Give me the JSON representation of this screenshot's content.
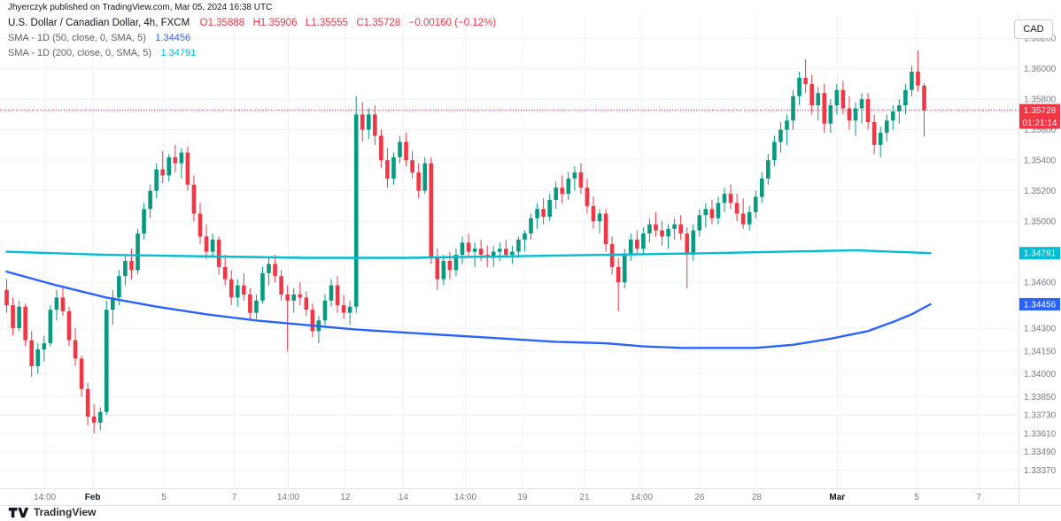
{
  "header": {
    "attribution": "Jhyerczyk published on TradingView.com, Mar 05, 2024 16:38 UTC"
  },
  "legend": {
    "symbol": "U.S. Dollar / Canadian Dollar, 4h, FXCM",
    "open": "O1.35888",
    "high": "H1.35906",
    "low": "L1.35555",
    "close": "C1.35728",
    "change": "−0.00160 (−0.12%)",
    "sma50_label": "SMA - 1D (50, close, 0, SMA, 5)",
    "sma50_value": "1.34456",
    "sma200_label": "SMA - 1D (200, close, 0, SMA, 5)",
    "sma200_value": "1.34791"
  },
  "toolbar": {
    "currency": "CAD"
  },
  "footer": {
    "brand": "TradingView"
  },
  "badges": {
    "price": "1.35728",
    "countdown": "01:21:14",
    "sma50": "1.34456",
    "sma200": "1.34791"
  },
  "colors": {
    "up": "#089981",
    "down": "#f23645",
    "sma50": "#2962ff",
    "sma200": "#00bcd4",
    "grid": "#eef1f6",
    "axis_text": "#787b86",
    "text": "#131722",
    "border": "#e0e3eb"
  },
  "chart_data": {
    "type": "candlestick",
    "title": "U.S. Dollar / Canadian Dollar, 4h, FXCM",
    "price_line": 1.35728,
    "y_axis": {
      "top_price": 1.3645,
      "bottom_price": 1.3325,
      "labels": [
        "1.36200",
        "1.36000",
        "1.35800",
        "1.35600",
        "1.35400",
        "1.35200",
        "1.35000",
        "1.34600",
        "1.34300",
        "1.34150",
        "1.34000",
        "1.33850",
        "1.33730",
        "1.33610",
        "1.33490",
        "1.33370"
      ]
    },
    "x_axis": {
      "left_pad": 4,
      "candle_span": 0.907,
      "labels": [
        {
          "label": "14:00",
          "pos": 0.044,
          "bold": false
        },
        {
          "label": "Feb",
          "pos": 0.091,
          "bold": true
        },
        {
          "label": "5",
          "pos": 0.161,
          "bold": false
        },
        {
          "label": "7",
          "pos": 0.23,
          "bold": false
        },
        {
          "label": "14:00",
          "pos": 0.283,
          "bold": false
        },
        {
          "label": "12",
          "pos": 0.339,
          "bold": false
        },
        {
          "label": "14",
          "pos": 0.396,
          "bold": false
        },
        {
          "label": "14:00",
          "pos": 0.457,
          "bold": false
        },
        {
          "label": "19",
          "pos": 0.513,
          "bold": false
        },
        {
          "label": "21",
          "pos": 0.574,
          "bold": false
        },
        {
          "label": "14:00",
          "pos": 0.63,
          "bold": false
        },
        {
          "label": "26",
          "pos": 0.687,
          "bold": false
        },
        {
          "label": "28",
          "pos": 0.743,
          "bold": false
        },
        {
          "label": "Mar",
          "pos": 0.822,
          "bold": true
        },
        {
          "label": "5",
          "pos": 0.9,
          "bold": false
        },
        {
          "label": "7",
          "pos": 0.961,
          "bold": false
        }
      ]
    },
    "candles": [
      [
        1.3455,
        1.3462,
        1.344,
        1.3445
      ],
      [
        1.3445,
        1.345,
        1.3425,
        1.343
      ],
      [
        1.343,
        1.3448,
        1.3428,
        1.3444
      ],
      [
        1.3444,
        1.3446,
        1.3418,
        1.3422
      ],
      [
        1.3422,
        1.3428,
        1.3398,
        1.3405
      ],
      [
        1.3405,
        1.342,
        1.34,
        1.3416
      ],
      [
        1.3416,
        1.3425,
        1.3408,
        1.342
      ],
      [
        1.342,
        1.3445,
        1.3418,
        1.3442
      ],
      [
        1.3442,
        1.3455,
        1.3435,
        1.345
      ],
      [
        1.345,
        1.3458,
        1.3438,
        1.3441
      ],
      [
        1.3441,
        1.3444,
        1.3418,
        1.3422
      ],
      [
        1.3422,
        1.343,
        1.3405,
        1.341
      ],
      [
        1.341,
        1.3412,
        1.3385,
        1.339
      ],
      [
        1.339,
        1.3394,
        1.3366,
        1.3372
      ],
      [
        1.3372,
        1.338,
        1.3361,
        1.3368
      ],
      [
        1.3368,
        1.3378,
        1.3363,
        1.3375
      ],
      [
        1.3375,
        1.3448,
        1.3373,
        1.3442
      ],
      [
        1.3442,
        1.3455,
        1.3432,
        1.345
      ],
      [
        1.345,
        1.3468,
        1.3445,
        1.3464
      ],
      [
        1.3464,
        1.3478,
        1.3458,
        1.3474
      ],
      [
        1.3474,
        1.3482,
        1.3462,
        1.3468
      ],
      [
        1.3468,
        1.3495,
        1.3465,
        1.3492
      ],
      [
        1.3492,
        1.3512,
        1.3488,
        1.3508
      ],
      [
        1.3508,
        1.3524,
        1.3502,
        1.352
      ],
      [
        1.352,
        1.3538,
        1.3515,
        1.3534
      ],
      [
        1.3534,
        1.3546,
        1.3525,
        1.353
      ],
      [
        1.353,
        1.3544,
        1.3526,
        1.3542
      ],
      [
        1.3542,
        1.355,
        1.3532,
        1.3538
      ],
      [
        1.3538,
        1.3548,
        1.3528,
        1.3545
      ],
      [
        1.3545,
        1.3549,
        1.352,
        1.3524
      ],
      [
        1.3524,
        1.353,
        1.35,
        1.3505
      ],
      [
        1.3505,
        1.3512,
        1.3485,
        1.349
      ],
      [
        1.349,
        1.3498,
        1.3475,
        1.348
      ],
      [
        1.348,
        1.3492,
        1.3476,
        1.3488
      ],
      [
        1.3488,
        1.349,
        1.3465,
        1.347
      ],
      [
        1.347,
        1.3478,
        1.3458,
        1.3462
      ],
      [
        1.3462,
        1.3468,
        1.3445,
        1.345
      ],
      [
        1.345,
        1.3462,
        1.3444,
        1.3458
      ],
      [
        1.3458,
        1.3466,
        1.3448,
        1.3452
      ],
      [
        1.3452,
        1.3456,
        1.3435,
        1.344
      ],
      [
        1.344,
        1.3452,
        1.3436,
        1.3448
      ],
      [
        1.3448,
        1.347,
        1.3446,
        1.3466
      ],
      [
        1.3466,
        1.3476,
        1.3458,
        1.3472
      ],
      [
        1.3472,
        1.3478,
        1.346,
        1.3464
      ],
      [
        1.3464,
        1.3468,
        1.3448,
        1.3452
      ],
      [
        1.3452,
        1.3458,
        1.3415,
        1.3448
      ],
      [
        1.3448,
        1.3456,
        1.344,
        1.3452
      ],
      [
        1.3452,
        1.346,
        1.3445,
        1.345
      ],
      [
        1.345,
        1.3454,
        1.3438,
        1.3442
      ],
      [
        1.3442,
        1.3446,
        1.3424,
        1.3428
      ],
      [
        1.3428,
        1.3438,
        1.342,
        1.3435
      ],
      [
        1.3435,
        1.3452,
        1.3432,
        1.3448
      ],
      [
        1.3448,
        1.3462,
        1.3444,
        1.3458
      ],
      [
        1.3458,
        1.3464,
        1.344,
        1.3445
      ],
      [
        1.3445,
        1.3452,
        1.3436,
        1.344
      ],
      [
        1.344,
        1.3448,
        1.3432,
        1.3444
      ],
      [
        1.3444,
        1.3582,
        1.344,
        1.357
      ],
      [
        1.357,
        1.3578,
        1.3552,
        1.356
      ],
      [
        1.356,
        1.3574,
        1.3554,
        1.357
      ],
      [
        1.357,
        1.3576,
        1.355,
        1.3556
      ],
      [
        1.3556,
        1.356,
        1.3535,
        1.354
      ],
      [
        1.354,
        1.3548,
        1.3522,
        1.3528
      ],
      [
        1.3528,
        1.3545,
        1.3524,
        1.3542
      ],
      [
        1.3542,
        1.3556,
        1.3538,
        1.3552
      ],
      [
        1.3552,
        1.3558,
        1.3536,
        1.354
      ],
      [
        1.354,
        1.3546,
        1.3528,
        1.3532
      ],
      [
        1.3532,
        1.3538,
        1.3515,
        1.352
      ],
      [
        1.352,
        1.3542,
        1.3518,
        1.3538
      ],
      [
        1.3538,
        1.3542,
        1.3472,
        1.3476
      ],
      [
        1.3476,
        1.3482,
        1.3455,
        1.3462
      ],
      [
        1.3462,
        1.3478,
        1.3458,
        1.3474
      ],
      [
        1.3474,
        1.348,
        1.3462,
        1.3468
      ],
      [
        1.3468,
        1.3482,
        1.3464,
        1.3478
      ],
      [
        1.3478,
        1.349,
        1.3472,
        1.3486
      ],
      [
        1.3486,
        1.3492,
        1.3476,
        1.348
      ],
      [
        1.348,
        1.3486,
        1.347,
        1.3482
      ],
      [
        1.3482,
        1.3488,
        1.3474,
        1.3478
      ],
      [
        1.3478,
        1.3484,
        1.347,
        1.3476
      ],
      [
        1.3476,
        1.3484,
        1.347,
        1.348
      ],
      [
        1.348,
        1.3486,
        1.3474,
        1.3482
      ],
      [
        1.3482,
        1.3488,
        1.3476,
        1.3478
      ],
      [
        1.3478,
        1.3484,
        1.3472,
        1.348
      ],
      [
        1.348,
        1.349,
        1.3476,
        1.3488
      ],
      [
        1.3488,
        1.3494,
        1.348,
        1.3492
      ],
      [
        1.3492,
        1.3505,
        1.3488,
        1.3502
      ],
      [
        1.3502,
        1.3512,
        1.3495,
        1.3508
      ],
      [
        1.3508,
        1.3515,
        1.3498,
        1.3503
      ],
      [
        1.3503,
        1.3518,
        1.35,
        1.3514
      ],
      [
        1.3514,
        1.3526,
        1.3508,
        1.3522
      ],
      [
        1.3522,
        1.353,
        1.3512,
        1.3518
      ],
      [
        1.3518,
        1.3532,
        1.3514,
        1.3528
      ],
      [
        1.3528,
        1.3536,
        1.352,
        1.3532
      ],
      [
        1.3532,
        1.3538,
        1.3518,
        1.3522
      ],
      [
        1.3522,
        1.3528,
        1.3505,
        1.351
      ],
      [
        1.351,
        1.3516,
        1.3495,
        1.35
      ],
      [
        1.35,
        1.3508,
        1.3492,
        1.3505
      ],
      [
        1.3505,
        1.3508,
        1.348,
        1.3485
      ],
      [
        1.3485,
        1.349,
        1.3465,
        1.347
      ],
      [
        1.347,
        1.3476,
        1.3441,
        1.346
      ],
      [
        1.346,
        1.3482,
        1.3456,
        1.3478
      ],
      [
        1.3478,
        1.3492,
        1.3474,
        1.3488
      ],
      [
        1.3488,
        1.3494,
        1.3478,
        1.3482
      ],
      [
        1.3482,
        1.3496,
        1.3478,
        1.3492
      ],
      [
        1.3492,
        1.3502,
        1.3486,
        1.3498
      ],
      [
        1.3498,
        1.3506,
        1.349,
        1.3494
      ],
      [
        1.3494,
        1.35,
        1.3484,
        1.349
      ],
      [
        1.349,
        1.3498,
        1.3482,
        1.3495
      ],
      [
        1.3495,
        1.3502,
        1.3488,
        1.3498
      ],
      [
        1.3498,
        1.3504,
        1.3488,
        1.3492
      ],
      [
        1.3492,
        1.3496,
        1.3456,
        1.3478
      ],
      [
        1.3478,
        1.3498,
        1.3474,
        1.3494
      ],
      [
        1.3494,
        1.3508,
        1.349,
        1.3504
      ],
      [
        1.3504,
        1.3512,
        1.3496,
        1.3508
      ],
      [
        1.3508,
        1.3514,
        1.3498,
        1.3502
      ],
      [
        1.3502,
        1.3516,
        1.3498,
        1.3512
      ],
      [
        1.3512,
        1.3522,
        1.3506,
        1.3518
      ],
      [
        1.3518,
        1.3524,
        1.3508,
        1.3512
      ],
      [
        1.3512,
        1.3518,
        1.35,
        1.3505
      ],
      [
        1.3505,
        1.3515,
        1.3495,
        1.3498
      ],
      [
        1.3498,
        1.351,
        1.3494,
        1.3506
      ],
      [
        1.3506,
        1.352,
        1.3502,
        1.3516
      ],
      [
        1.3516,
        1.3532,
        1.3512,
        1.3528
      ],
      [
        1.3528,
        1.3544,
        1.3524,
        1.354
      ],
      [
        1.354,
        1.3556,
        1.3536,
        1.3552
      ],
      [
        1.3552,
        1.3565,
        1.3545,
        1.356
      ],
      [
        1.356,
        1.357,
        1.355,
        1.3566
      ],
      [
        1.3566,
        1.3586,
        1.356,
        1.3582
      ],
      [
        1.3582,
        1.3598,
        1.3576,
        1.3594
      ],
      [
        1.3594,
        1.3606,
        1.3584,
        1.359
      ],
      [
        1.359,
        1.3596,
        1.357,
        1.3576
      ],
      [
        1.3576,
        1.3588,
        1.3566,
        1.3584
      ],
      [
        1.3584,
        1.359,
        1.3558,
        1.3564
      ],
      [
        1.3564,
        1.358,
        1.3558,
        1.3576
      ],
      [
        1.3576,
        1.359,
        1.357,
        1.3586
      ],
      [
        1.3586,
        1.3592,
        1.357,
        1.3574
      ],
      [
        1.3574,
        1.3582,
        1.356,
        1.3566
      ],
      [
        1.3566,
        1.3578,
        1.3556,
        1.3574
      ],
      [
        1.3574,
        1.3584,
        1.3564,
        1.358
      ],
      [
        1.358,
        1.3584,
        1.356,
        1.3565
      ],
      [
        1.3565,
        1.357,
        1.3544,
        1.355
      ],
      [
        1.355,
        1.3562,
        1.3542,
        1.3558
      ],
      [
        1.3558,
        1.357,
        1.3552,
        1.3566
      ],
      [
        1.3566,
        1.3576,
        1.356,
        1.3572
      ],
      [
        1.3572,
        1.358,
        1.3564,
        1.3576
      ],
      [
        1.3576,
        1.359,
        1.357,
        1.3586
      ],
      [
        1.3586,
        1.3602,
        1.3582,
        1.3598
      ],
      [
        1.3598,
        1.3612,
        1.3585,
        1.3589
      ],
      [
        1.35888,
        1.35906,
        1.35555,
        1.35728
      ]
    ],
    "sma50": {
      "points": [
        [
          0,
          1.3467
        ],
        [
          8,
          1.3458
        ],
        [
          16,
          1.345
        ],
        [
          24,
          1.3444
        ],
        [
          32,
          1.3439
        ],
        [
          40,
          1.3435
        ],
        [
          48,
          1.3432
        ],
        [
          56,
          1.3429
        ],
        [
          64,
          1.3427
        ],
        [
          72,
          1.3425
        ],
        [
          80,
          1.3423
        ],
        [
          88,
          1.3421
        ],
        [
          96,
          1.342
        ],
        [
          102,
          1.3418
        ],
        [
          108,
          1.3417
        ],
        [
          114,
          1.3417
        ],
        [
          120,
          1.3417
        ],
        [
          126,
          1.3419
        ],
        [
          132,
          1.3423
        ],
        [
          138,
          1.3428
        ],
        [
          142,
          1.3434
        ],
        [
          145,
          1.3439
        ],
        [
          148,
          1.34456
        ]
      ]
    },
    "sma200": {
      "points": [
        [
          0,
          1.348
        ],
        [
          16,
          1.3478
        ],
        [
          32,
          1.3477
        ],
        [
          48,
          1.3476
        ],
        [
          64,
          1.3476
        ],
        [
          80,
          1.3477
        ],
        [
          96,
          1.3478
        ],
        [
          112,
          1.3479
        ],
        [
          124,
          1.348
        ],
        [
          136,
          1.3481
        ],
        [
          148,
          1.34791
        ]
      ]
    }
  }
}
